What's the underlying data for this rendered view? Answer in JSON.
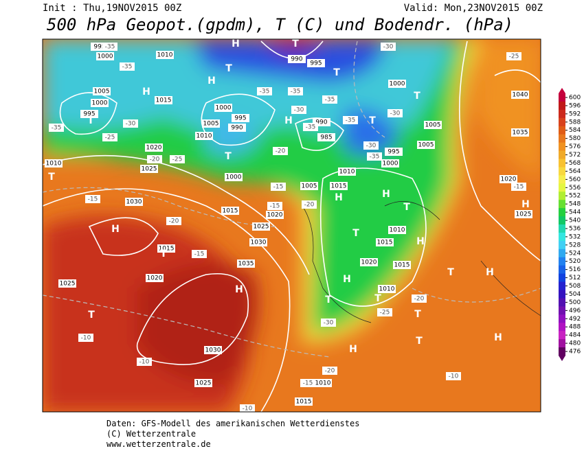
{
  "header": {
    "init": "Init : Thu,19NOV2015 00Z",
    "valid": "Valid: Mon,23NOV2015 00Z",
    "title": "500 hPa Geopot.(gpdm), T (C) und Bodendr. (hPa)"
  },
  "colorbar": {
    "ticks": [
      600,
      596,
      592,
      588,
      584,
      580,
      576,
      572,
      568,
      564,
      560,
      556,
      552,
      548,
      544,
      540,
      536,
      532,
      528,
      524,
      520,
      516,
      512,
      508,
      504,
      500,
      496,
      492,
      488,
      484,
      480,
      476
    ],
    "colors": [
      "#c4003c",
      "#c01818",
      "#cc2a1c",
      "#d8421c",
      "#e05c16",
      "#e8781e",
      "#f09222",
      "#f0aa2a",
      "#f8c232",
      "#f8d840",
      "#f6ee4e",
      "#e4f642",
      "#b0ee32",
      "#66e032",
      "#24d040",
      "#12c866",
      "#22d8b0",
      "#34e6e0",
      "#40d0f4",
      "#30aaf0",
      "#2282f0",
      "#1862e8",
      "#1042e0",
      "#2422d0",
      "#3412c0",
      "#5210b2",
      "#7010b0",
      "#9010c0",
      "#b012c2",
      "#c822c2",
      "#a010a0",
      "#600060"
    ]
  },
  "map": {
    "isobar_labels": [
      "995",
      "1000",
      "1010",
      "990",
      "995",
      "1005",
      "1000",
      "995",
      "1015",
      "1000",
      "995",
      "1005",
      "990",
      "1010",
      "1020",
      "1025",
      "1000",
      "1010",
      "1030",
      "1015",
      "1005",
      "1015",
      "1010",
      "1025",
      "1030",
      "1035",
      "1015",
      "1020",
      "1025",
      "1030",
      "1025",
      "1010",
      "1015",
      "1020",
      "1015",
      "1010",
      "1000",
      "995",
      "1000",
      "1005",
      "1005",
      "1040",
      "1035",
      "1020",
      "1025",
      "1010",
      "1015",
      "990",
      "985",
      "1020"
    ],
    "high_labels": [
      "H",
      "H",
      "H",
      "H",
      "H",
      "H",
      "H",
      "H",
      "H",
      "H",
      "H",
      "H",
      "H",
      "H"
    ],
    "low_labels": [
      "T",
      "T",
      "T",
      "T",
      "T",
      "T",
      "T",
      "T",
      "T",
      "T",
      "T",
      "T",
      "T",
      "T",
      "T",
      "T",
      "T"
    ],
    "temperature_labels": [
      "-35",
      "-35",
      "-35",
      "-35",
      "-35",
      "-35",
      "-35",
      "-35",
      "-35",
      "-30",
      "-30",
      "-30",
      "-30",
      "-30",
      "-30",
      "-25",
      "-25",
      "-25",
      "-25",
      "-20",
      "-20",
      "-20",
      "-20",
      "-20",
      "-20",
      "-15",
      "-15",
      "-15",
      "-15",
      "-15",
      "-15",
      "-10",
      "-10",
      "-10",
      "-10"
    ]
  },
  "footer": {
    "line1": "Daten: GFS-Modell des amerikanischen Wetterdienstes",
    "line2": "(C) Wetterzentrale",
    "line3": "www.wetterzentrale.de"
  }
}
